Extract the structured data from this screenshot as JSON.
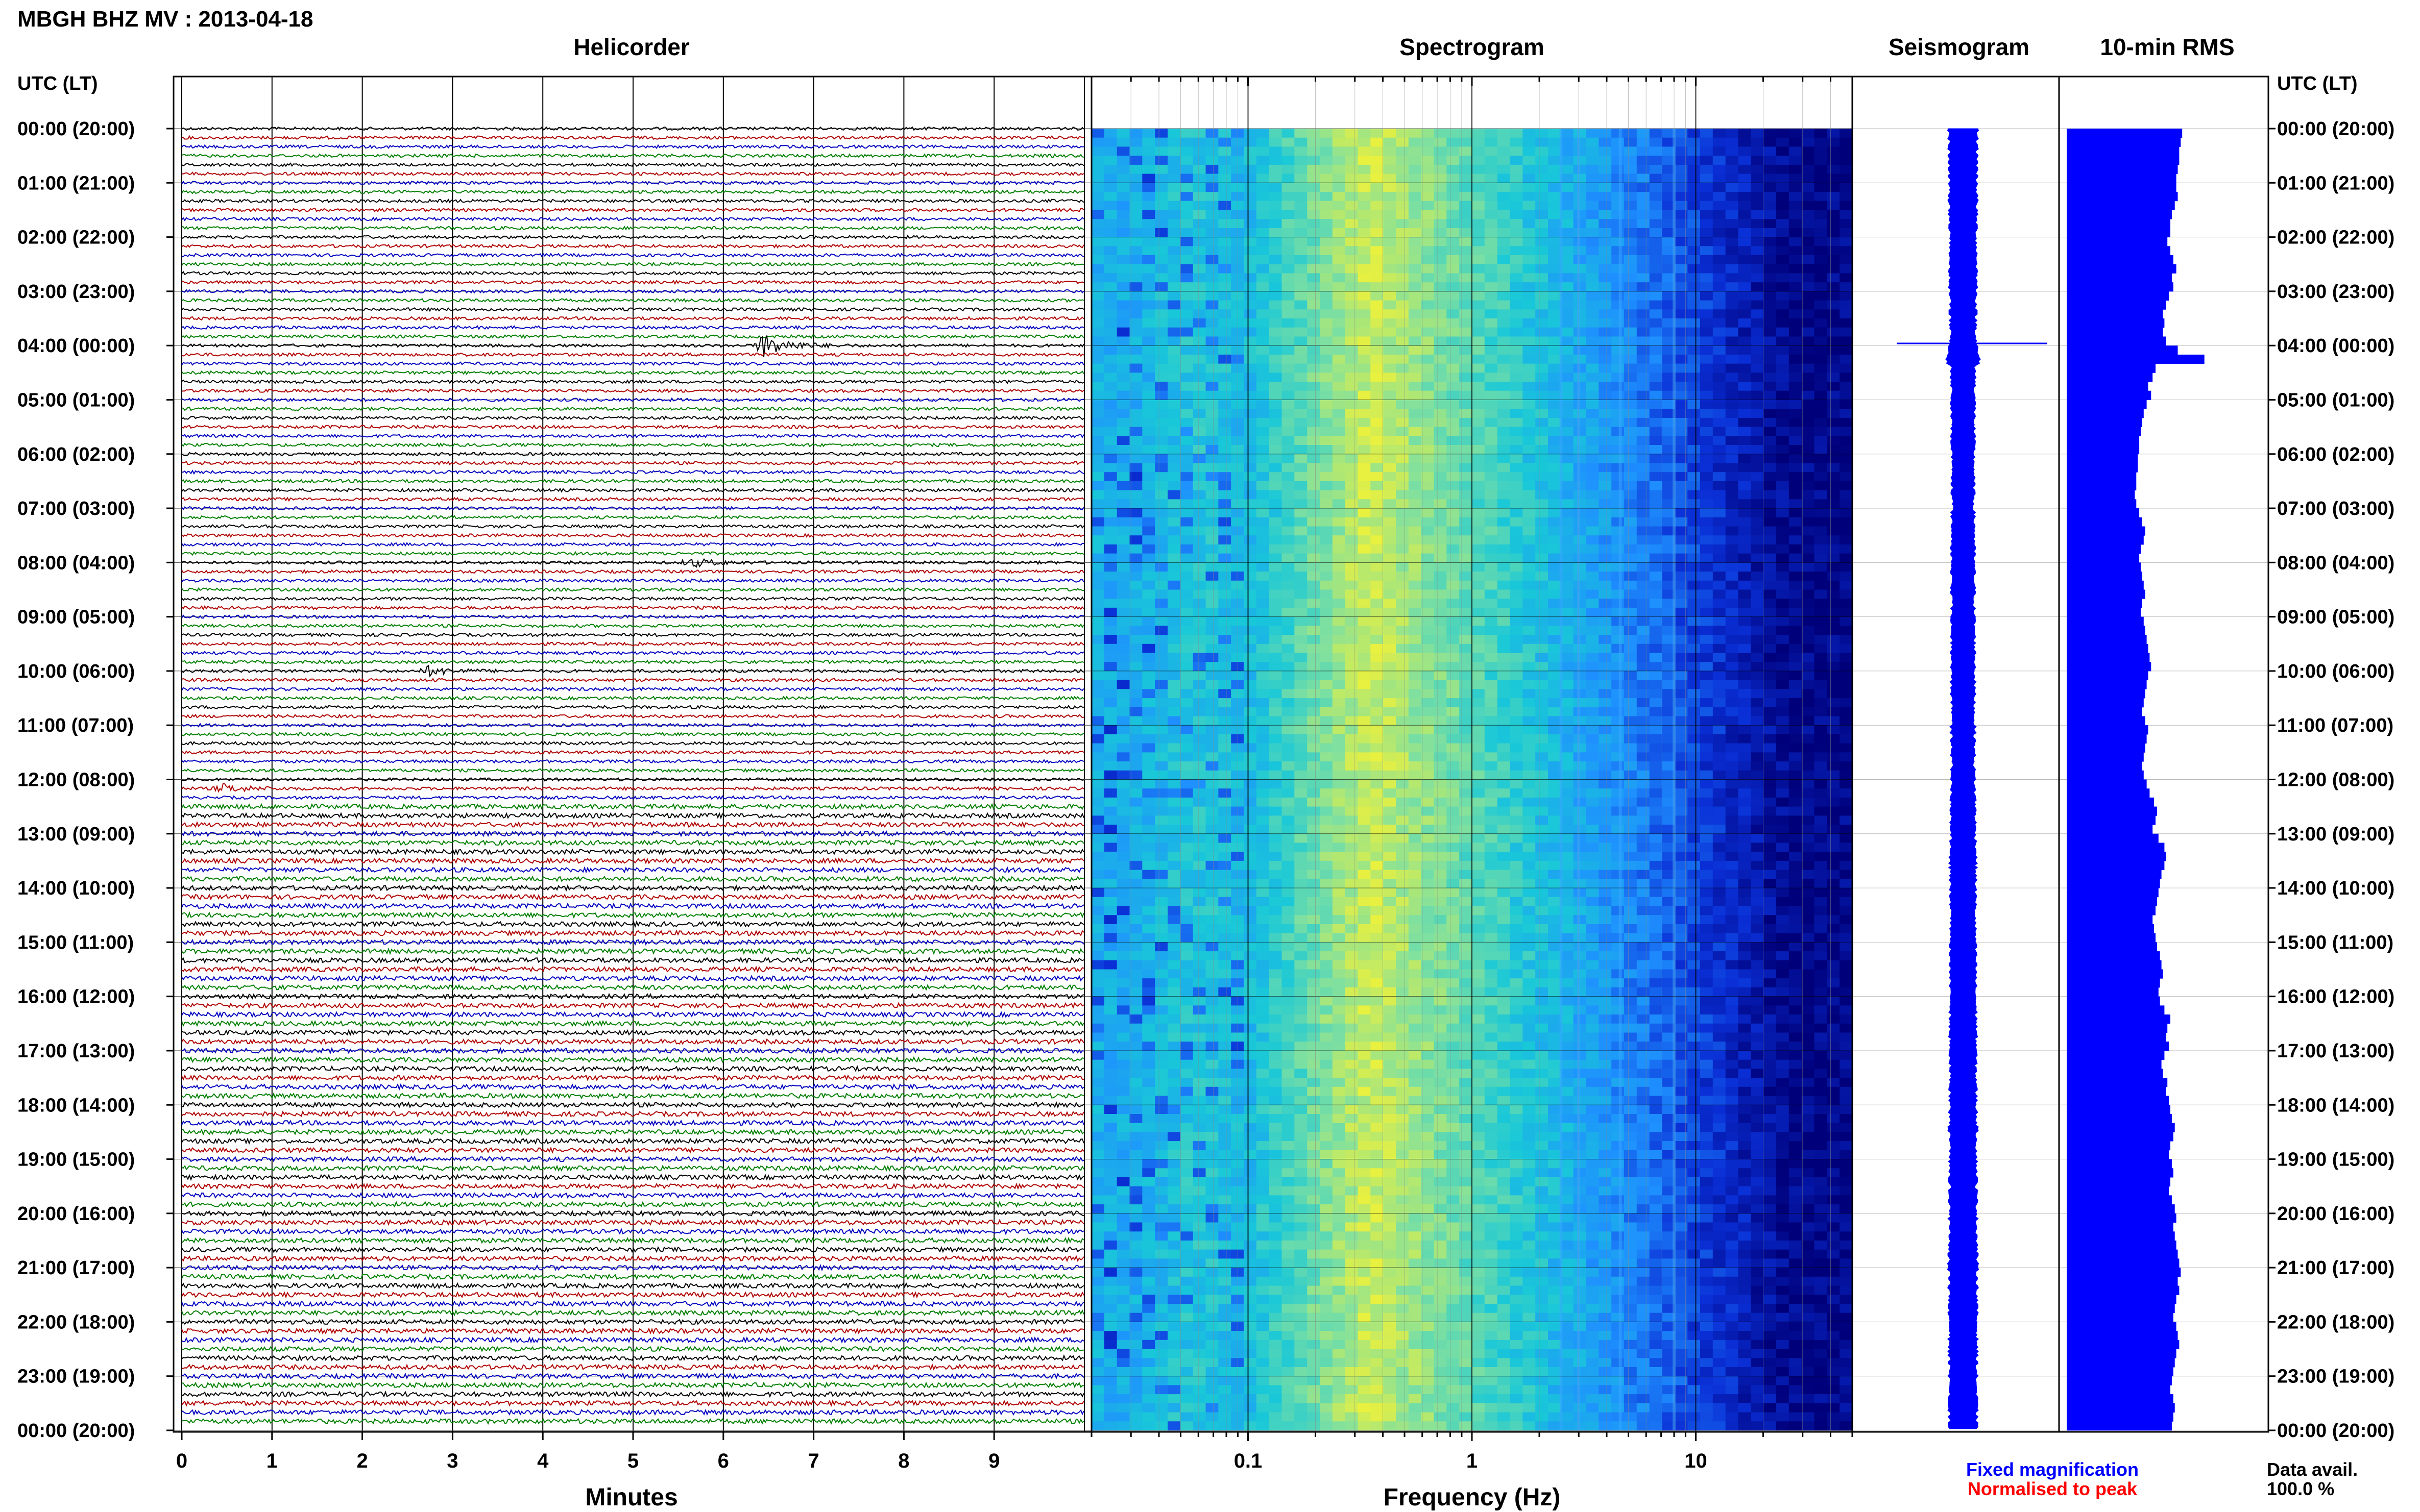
{
  "header": {
    "station_title": "MBGH BHZ MV : 2013-04-18",
    "axis_header_left": "UTC (LT)",
    "axis_header_right": "UTC (LT)"
  },
  "panels": {
    "helicorder_title": "Helicorder",
    "spectrogram_title": "Spectrogram",
    "seismogram_title": "Seismogram",
    "rms_title": "10-min RMS"
  },
  "legend": {
    "fixed_label": "Fixed magnification",
    "fixed_color": "#0000ff",
    "normalised_label": "Normalised to peak",
    "normalised_color": "#ff0000",
    "data_avail_label": "Data avail.",
    "data_avail_value": "100.0 %"
  },
  "chart_data": [
    {
      "type": "line",
      "name": "helicorder",
      "xlabel": "Minutes",
      "x_ticks": [
        "0",
        "1",
        "2",
        "3",
        "4",
        "5",
        "6",
        "7",
        "8",
        "9"
      ],
      "xlim": [
        0,
        10
      ],
      "lines_per_hour": 6,
      "trace_colors": [
        "#000000",
        "#b00000",
        "#0000c0",
        "#008000"
      ],
      "events": [
        {
          "time": "04:00",
          "minute": 6.4,
          "amplitude": "large"
        },
        {
          "time": "08:00",
          "minute": 5.6,
          "amplitude": "small"
        },
        {
          "time": "10:00",
          "minute": 2.7,
          "amplitude": "small"
        },
        {
          "time": "12:10",
          "minute": 0.4,
          "amplitude": "small"
        }
      ]
    },
    {
      "type": "heatmap",
      "name": "spectrogram",
      "xlabel": "Frequency (Hz)",
      "x_scale": "log",
      "x_ticks": [
        "0.1",
        "1",
        "10"
      ],
      "xlim": [
        0.02,
        50
      ],
      "colormap": [
        "#00007a",
        "#0a2fd6",
        "#1e90ff",
        "#19c8d8",
        "#7fe0a0",
        "#e8f040"
      ]
    },
    {
      "type": "line",
      "name": "seismogram"
    },
    {
      "type": "bar",
      "name": "10-min RMS",
      "orientation": "horizontal",
      "bar_color": "#0000ff",
      "values": [
        78,
        77,
        76,
        76,
        75,
        74,
        74,
        75,
        73,
        71,
        70,
        70,
        68,
        70,
        72,
        74,
        71,
        72,
        69,
        67,
        65,
        66,
        65,
        67,
        75,
        93,
        60,
        58,
        55,
        57,
        54,
        52,
        51,
        50,
        49,
        49,
        48,
        48,
        47,
        47,
        46,
        47,
        49,
        51,
        53,
        52,
        50,
        49,
        50,
        51,
        52,
        53,
        51,
        50,
        52,
        53,
        54,
        55,
        56,
        57,
        55,
        54,
        53,
        52,
        51,
        53,
        55,
        54,
        53,
        52,
        51,
        52,
        54,
        56,
        59,
        61,
        60,
        58,
        62,
        66,
        67,
        66,
        64,
        63,
        62,
        61,
        60,
        58,
        59,
        60,
        61,
        63,
        64,
        65,
        63,
        62,
        63,
        66,
        70,
        68,
        67,
        69,
        66,
        64,
        65,
        68,
        67,
        69,
        70,
        71,
        73,
        72,
        70,
        69,
        71,
        72,
        70,
        69,
        71,
        73,
        74,
        72,
        73,
        74,
        75,
        76,
        77,
        75,
        76,
        74,
        73,
        72,
        74,
        75,
        76,
        74,
        73,
        72,
        71,
        70,
        72,
        73,
        72,
        71
      ]
    }
  ],
  "time_axis": {
    "labels": [
      "00:00 (20:00)",
      "01:00 (21:00)",
      "02:00 (22:00)",
      "03:00 (23:00)",
      "04:00 (00:00)",
      "05:00 (01:00)",
      "06:00 (02:00)",
      "07:00 (03:00)",
      "08:00 (04:00)",
      "09:00 (05:00)",
      "10:00 (06:00)",
      "11:00 (07:00)",
      "12:00 (08:00)",
      "13:00 (09:00)",
      "14:00 (10:00)",
      "15:00 (11:00)",
      "16:00 (12:00)",
      "17:00 (13:00)",
      "18:00 (14:00)",
      "19:00 (15:00)",
      "20:00 (16:00)",
      "21:00 (17:00)",
      "22:00 (18:00)",
      "23:00 (19:00)",
      "00:00 (20:00)"
    ]
  }
}
